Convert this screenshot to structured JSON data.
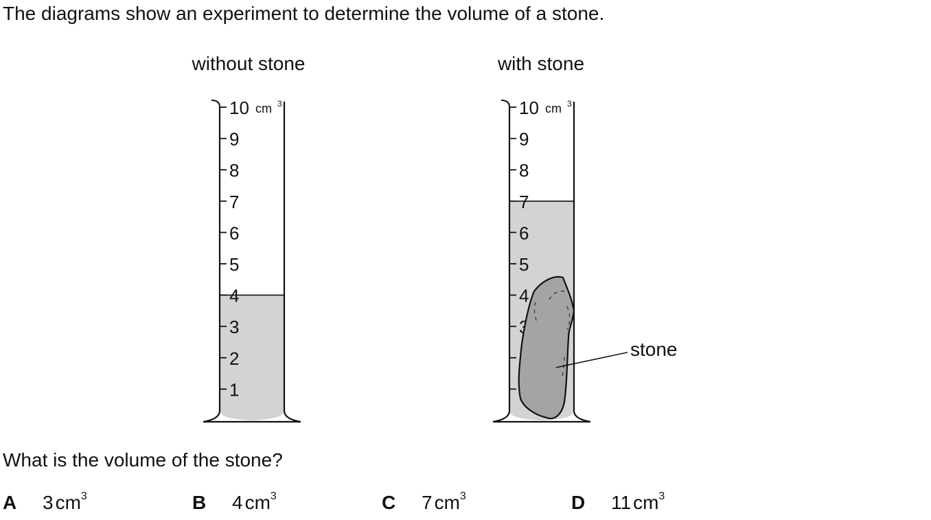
{
  "question": "The diagrams show an experiment to determine the volume of a stone.",
  "diagram": {
    "left_label": "without stone",
    "right_label": "with stone",
    "unit": "cm",
    "unit_power": "3",
    "scale_numbers": [
      "10",
      "9",
      "8",
      "7",
      "6",
      "5",
      "4",
      "3",
      "2",
      "1"
    ],
    "left_level": 4,
    "right_level": 7,
    "stone_label": "stone",
    "liquid_color": "#d3d3d3",
    "stone_color": "#a4a4a4"
  },
  "prompt": "What is the volume of the stone?",
  "options": [
    {
      "letter": "A",
      "value": "3",
      "unit": "cm",
      "power": "3"
    },
    {
      "letter": "B",
      "value": "4",
      "unit": "cm",
      "power": "3"
    },
    {
      "letter": "C",
      "value": "7",
      "unit": "cm",
      "power": "3"
    },
    {
      "letter": "D",
      "value": "11",
      "unit": "cm",
      "power": "3"
    }
  ]
}
